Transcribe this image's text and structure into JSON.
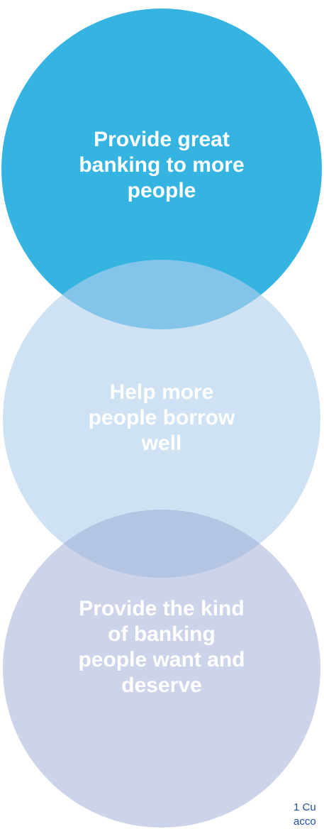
{
  "circles": [
    {
      "label": "Provide great banking to more people",
      "color": "#27AEDF"
    },
    {
      "label": "Help more people borrow well",
      "color": "#B1D1EB"
    },
    {
      "label": "Provide the kind of banking people want and deserve",
      "color": "#96A5D1"
    }
  ],
  "footnote": {
    "line1": "1 Cu",
    "line2": "acco"
  }
}
